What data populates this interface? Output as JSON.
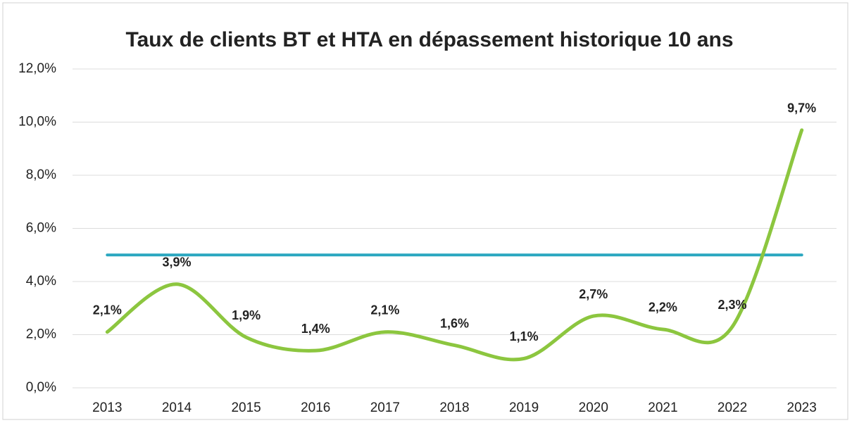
{
  "chart_data": {
    "type": "line",
    "title": "Taux de clients BT et HTA en dépassement historique 10 ans",
    "categories": [
      "2013",
      "2014",
      "2015",
      "2016",
      "2017",
      "2018",
      "2019",
      "2020",
      "2021",
      "2022",
      "2023"
    ],
    "series": [
      {
        "color": "#8cc63f",
        "values": [
          2.1,
          3.9,
          1.9,
          1.4,
          2.1,
          1.6,
          1.1,
          2.7,
          2.2,
          2.3,
          9.7
        ],
        "value_labels": [
          "2,1%",
          "3,9%",
          "1,9%",
          "1,4%",
          "2,1%",
          "1,6%",
          "1,1%",
          "2,7%",
          "2,2%",
          "2,3%",
          "9,7%"
        ]
      },
      {
        "color": "#2aa7c0",
        "values": [
          5,
          5,
          5,
          5,
          5,
          5,
          5,
          5,
          5,
          5,
          5
        ]
      }
    ],
    "ylim": [
      0,
      12
    ],
    "yticks": [
      {
        "value": 0,
        "label": "0,0%"
      },
      {
        "value": 2,
        "label": "2,0%"
      },
      {
        "value": 4,
        "label": "4,0%"
      },
      {
        "value": 6,
        "label": "6,0%"
      },
      {
        "value": 8,
        "label": "8,0%"
      },
      {
        "value": 10,
        "label": "10,0%"
      },
      {
        "value": 12,
        "label": "12,0%"
      }
    ],
    "grid": true
  }
}
